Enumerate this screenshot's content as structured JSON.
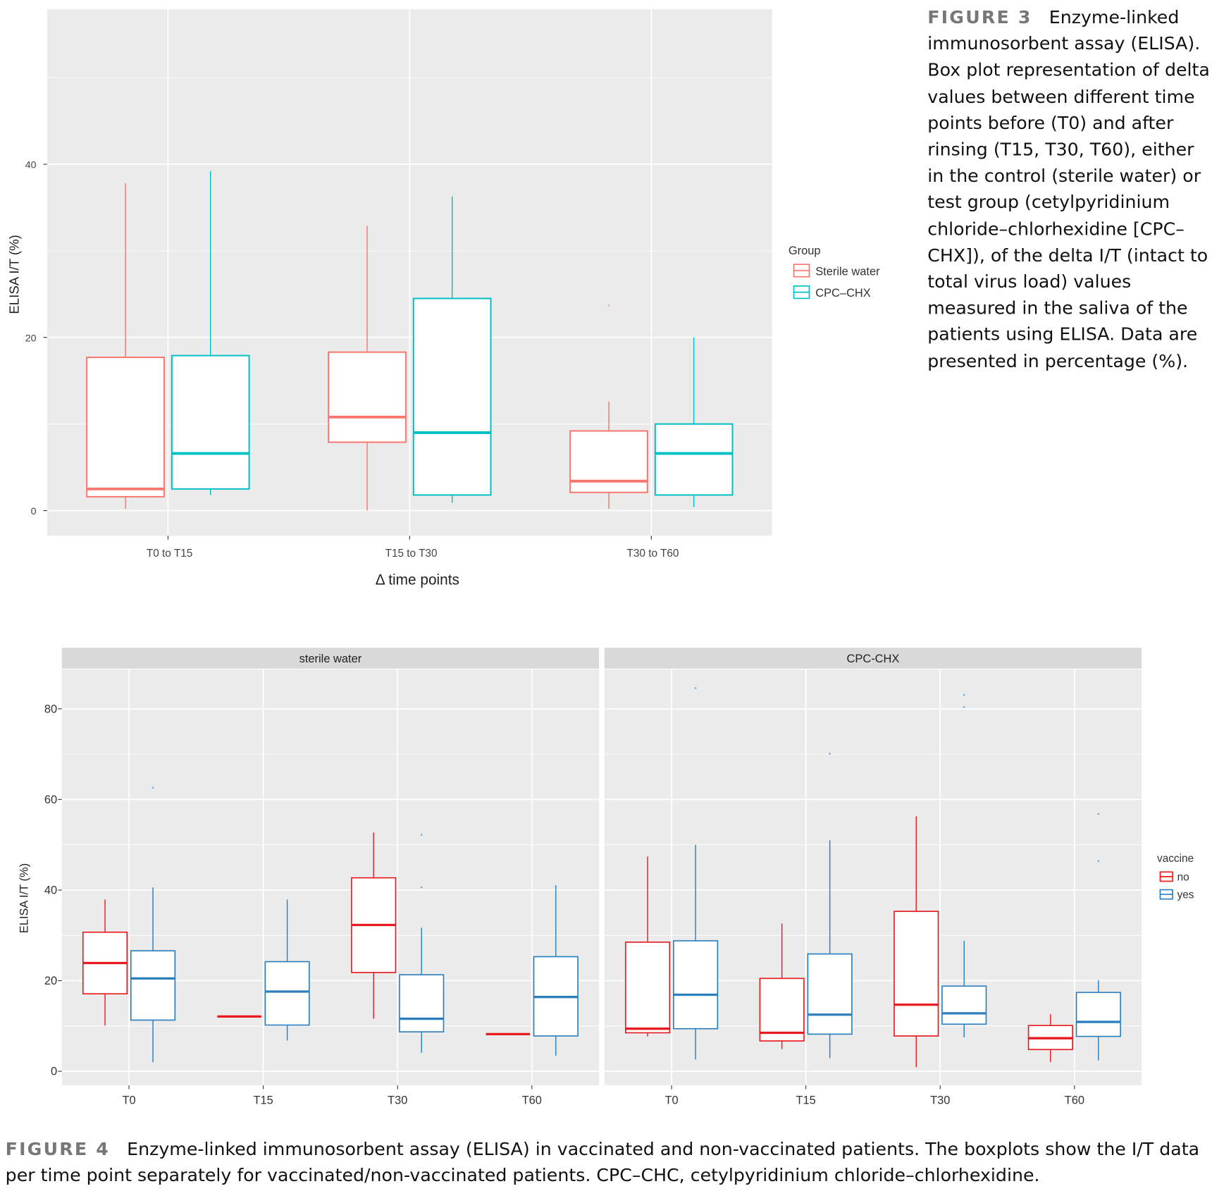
{
  "figure3": {
    "caption_label": "FIGURE 3",
    "caption_text": "Enzyme-linked immunosorbent assay (ELISA). Box plot representation of delta values between different time points before (T0) and after rinsing (T15, T30, T60), either in the control (sterile water) or test group (cetylpyridinium chloride–chlorhexidine [CPC–CHX]), of the delta I/T (intact to total virus load) values measured in the saliva of the patients using ELISA. Data are presented in percentage (%)."
  },
  "figure4": {
    "caption_label": "FIGURE 4",
    "caption_text": "Enzyme-linked immunosorbent assay (ELISA) in vaccinated and non-vaccinated patients. The boxplots show the I/T data per time point separately for vaccinated/non-vaccinated patients. CPC–CHC, cetylpyridinium chloride–chlorhexidine."
  },
  "chart_data": [
    {
      "type": "box",
      "xlabel": "Δ time points",
      "ylabel": "ELISA I/T (%)",
      "ylim": [
        -2.9,
        57.9
      ],
      "yticks": [
        0,
        20,
        40
      ],
      "grid": true,
      "legend": {
        "title": "Group",
        "placement": "right",
        "entries": [
          "Sterile water",
          "CPC–CHX"
        ]
      },
      "categories": [
        "T0 to T15",
        "T15 to T30",
        "T30 to T60"
      ],
      "colors": {
        "Sterile water": "#F8766D",
        "CPC–CHX": "#00BFC4"
      },
      "series": [
        {
          "name": "Sterile water",
          "boxes": [
            {
              "min": 0.2,
              "q1": 1.6,
              "median": 2.5,
              "q3": 17.7,
              "max": 37.8,
              "outliers": []
            },
            {
              "min": 0.0,
              "q1": 7.9,
              "median": 10.8,
              "q3": 18.3,
              "max": 32.9,
              "outliers": []
            },
            {
              "min": 0.2,
              "q1": 2.1,
              "median": 3.4,
              "q3": 9.2,
              "max": 12.6,
              "outliers": [
                23.7
              ]
            }
          ]
        },
        {
          "name": "CPC–CHX",
          "boxes": [
            {
              "min": 1.8,
              "q1": 2.5,
              "median": 6.6,
              "q3": 17.9,
              "max": 39.2,
              "outliers": []
            },
            {
              "min": 0.9,
              "q1": 1.8,
              "median": 9.0,
              "q3": 24.5,
              "max": 36.3,
              "outliers": []
            },
            {
              "min": 0.4,
              "q1": 1.8,
              "median": 6.6,
              "q3": 10.0,
              "max": 20.0,
              "outliers": []
            }
          ]
        }
      ]
    },
    {
      "type": "box",
      "ylabel": "ELISA I/T (%)",
      "ylim": [
        -3.1,
        88.7
      ],
      "yticks": [
        0,
        20,
        40,
        60,
        80
      ],
      "grid": true,
      "legend": {
        "title": "vaccine",
        "placement": "right",
        "entries": [
          "no",
          "yes"
        ]
      },
      "colors": {
        "no": "#E8191F",
        "yes": "#2B7FBE"
      },
      "categories": [
        "T0",
        "T15",
        "T30",
        "T60"
      ],
      "panels": [
        {
          "title": "sterile water",
          "series": [
            {
              "name": "no",
              "boxes": [
                {
                  "min": 10.1,
                  "q1": 17.1,
                  "median": 23.9,
                  "q3": 30.7,
                  "max": 37.9,
                  "outliers": []
                },
                {
                  "min": 12.1,
                  "q1": 12.1,
                  "median": 12.1,
                  "q3": 12.1,
                  "max": 12.1,
                  "outliers": []
                },
                {
                  "min": 11.6,
                  "q1": 21.8,
                  "median": 32.3,
                  "q3": 42.7,
                  "max": 52.7,
                  "outliers": []
                },
                {
                  "min": 8.2,
                  "q1": 8.2,
                  "median": 8.2,
                  "q3": 8.2,
                  "max": 8.2,
                  "outliers": []
                }
              ]
            },
            {
              "name": "yes",
              "boxes": [
                {
                  "min": 2.0,
                  "q1": 11.3,
                  "median": 20.5,
                  "q3": 26.6,
                  "max": 40.6,
                  "outliers": [
                    62.6
                  ]
                },
                {
                  "min": 6.8,
                  "q1": 10.2,
                  "median": 17.6,
                  "q3": 24.2,
                  "max": 37.9,
                  "outliers": []
                },
                {
                  "min": 4.1,
                  "q1": 8.7,
                  "median": 11.6,
                  "q3": 21.3,
                  "max": 31.7,
                  "outliers": [
                    40.6,
                    52.2
                  ]
                },
                {
                  "min": 3.4,
                  "q1": 7.8,
                  "median": 16.4,
                  "q3": 25.3,
                  "max": 41.1,
                  "outliers": []
                }
              ]
            }
          ]
        },
        {
          "title": "CPC-CHX",
          "series": [
            {
              "name": "no",
              "boxes": [
                {
                  "min": 7.7,
                  "q1": 8.5,
                  "median": 9.4,
                  "q3": 28.5,
                  "max": 47.4,
                  "outliers": []
                },
                {
                  "min": 4.9,
                  "q1": 6.7,
                  "median": 8.5,
                  "q3": 20.5,
                  "max": 32.6,
                  "outliers": []
                },
                {
                  "min": 0.9,
                  "q1": 7.8,
                  "median": 14.7,
                  "q3": 35.3,
                  "max": 56.3,
                  "outliers": []
                },
                {
                  "min": 2.0,
                  "q1": 4.8,
                  "median": 7.3,
                  "q3": 10.1,
                  "max": 12.6,
                  "outliers": []
                }
              ]
            },
            {
              "name": "yes",
              "boxes": [
                {
                  "min": 2.6,
                  "q1": 9.4,
                  "median": 16.9,
                  "q3": 28.8,
                  "max": 50.0,
                  "outliers": [
                    84.6
                  ]
                },
                {
                  "min": 2.9,
                  "q1": 8.2,
                  "median": 12.5,
                  "q3": 25.9,
                  "max": 51.0,
                  "outliers": [
                    70.1
                  ]
                },
                {
                  "min": 7.5,
                  "q1": 10.4,
                  "median": 12.8,
                  "q3": 18.8,
                  "max": 28.8,
                  "outliers": [
                    80.4,
                    83.1
                  ]
                },
                {
                  "min": 2.4,
                  "q1": 7.7,
                  "median": 10.9,
                  "q3": 17.4,
                  "max": 20.1,
                  "outliers": [
                    46.4,
                    56.8
                  ]
                }
              ]
            }
          ]
        }
      ]
    }
  ]
}
